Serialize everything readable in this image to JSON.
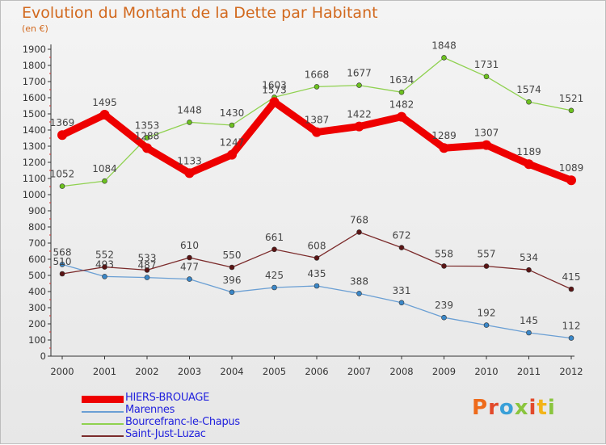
{
  "header": {
    "title": "Evolution du Montant de la Dette par Habitant",
    "unit": "(en €)"
  },
  "brand": {
    "text": "Proxiti",
    "colors": [
      "#ee6a1a",
      "#e24a2b",
      "#3aa0d8",
      "#8ac53e",
      "#e24a2b",
      "#f3b419",
      "#8ac53e"
    ]
  },
  "chart_data": {
    "type": "line",
    "title": "Evolution du Montant de la Dette par Habitant",
    "subtitle": "(en €)",
    "xlabel": "",
    "ylabel": "",
    "x": [
      "2000",
      "2001",
      "2002",
      "2003",
      "2004",
      "2005",
      "2006",
      "2007",
      "2008",
      "2009",
      "2010",
      "2011",
      "2012"
    ],
    "ylim": [
      0,
      1900
    ],
    "yticks": [
      0,
      100,
      200,
      300,
      400,
      500,
      600,
      700,
      800,
      900,
      1000,
      1100,
      1200,
      1300,
      1400,
      1500,
      1600,
      1700,
      1800,
      1900
    ],
    "grid": false,
    "legend_position": "bottom-left",
    "series": [
      {
        "name": "Marennes",
        "color": "#6a9fd4",
        "marker": "#3a87c8",
        "values": [
          568,
          493,
          487,
          477,
          396,
          425,
          435,
          388,
          331,
          239,
          192,
          145,
          112
        ],
        "labels": [
          "568",
          "493",
          "487",
          "477",
          "396",
          "425",
          "435",
          "388",
          "331",
          "239",
          "192",
          "145",
          "112"
        ]
      },
      {
        "name": "Bourcefranc-le-Chapus",
        "color": "#8fd14f",
        "marker": "#6cc11f",
        "values": [
          1052,
          1084,
          1353,
          1448,
          1430,
          1603,
          1668,
          1677,
          1634,
          1848,
          1731,
          1574,
          1521
        ],
        "labels": [
          "1052",
          "1084",
          "1353",
          "1448",
          "1430",
          "1603",
          "1668",
          "1677",
          "1634",
          "1848",
          "1731",
          "1574",
          "1521"
        ]
      },
      {
        "name": "Saint-Just-Luzac",
        "color": "#7b2b2b",
        "marker": "#5a1414",
        "values": [
          510,
          552,
          533,
          610,
          550,
          661,
          608,
          768,
          672,
          558,
          557,
          534,
          415
        ],
        "labels": [
          "510",
          "552",
          "533",
          "610",
          "550",
          "661",
          "608",
          "768",
          "672",
          "558",
          "557",
          "534",
          "415"
        ]
      },
      {
        "name": "HIERS-BROUAGE",
        "color": "#ee0000",
        "marker": "#ee0000",
        "values": [
          1369,
          1495,
          1288,
          1133,
          1247,
          1573,
          1387,
          1422,
          1482,
          1289,
          1307,
          1189,
          1089
        ],
        "labels": [
          "1369",
          "1495",
          "1288",
          "1133",
          "1247",
          "1573",
          "1387",
          "1422",
          "1482",
          "1289",
          "1307",
          "1189",
          "1089"
        ]
      }
    ],
    "legend_order": [
      "HIERS-BROUAGE",
      "Marennes",
      "Bourcefranc-le-Chapus",
      "Saint-Just-Luzac"
    ]
  }
}
